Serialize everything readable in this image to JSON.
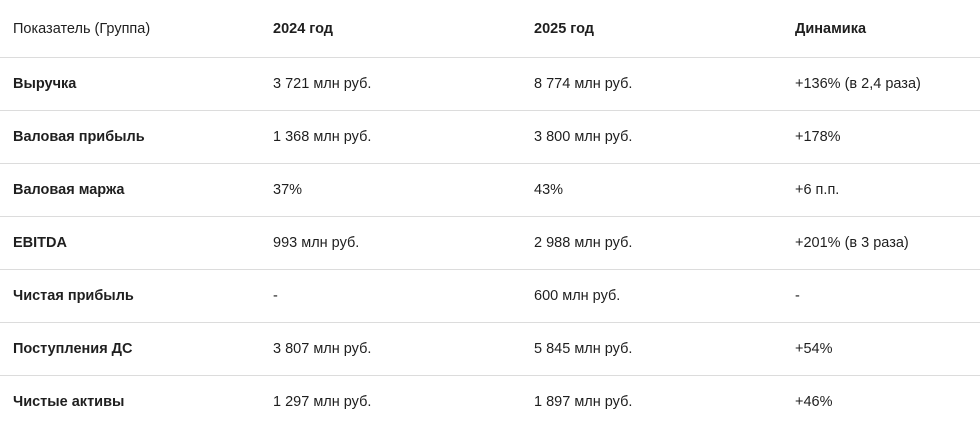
{
  "table": {
    "header": [
      "Показатель (Группа)",
      "2024 год",
      "2025 год",
      "Динамика"
    ],
    "rows": [
      [
        "Выручка",
        "3 721 млн руб.",
        "8 774 млн руб.",
        "+136% (в 2,4 раза)"
      ],
      [
        "Валовая прибыль",
        "1 368 млн руб.",
        "3 800 млн руб.",
        "+178%"
      ],
      [
        "Валовая маржа",
        "37%",
        "43%",
        "+6 п.п."
      ],
      [
        "EBITDA",
        "993 млн руб.",
        "2 988 млн руб.",
        "+201% (в 3 раза)"
      ],
      [
        "Чистая прибыль",
        "-",
        "600 млн руб.",
        "-"
      ],
      [
        "Поступления ДС",
        "3 807 млн руб.",
        "5 845 млн руб.",
        "+54%"
      ],
      [
        "Чистые активы",
        "1 297 млн руб.",
        "1 897 млн руб.",
        "+46%"
      ]
    ]
  }
}
